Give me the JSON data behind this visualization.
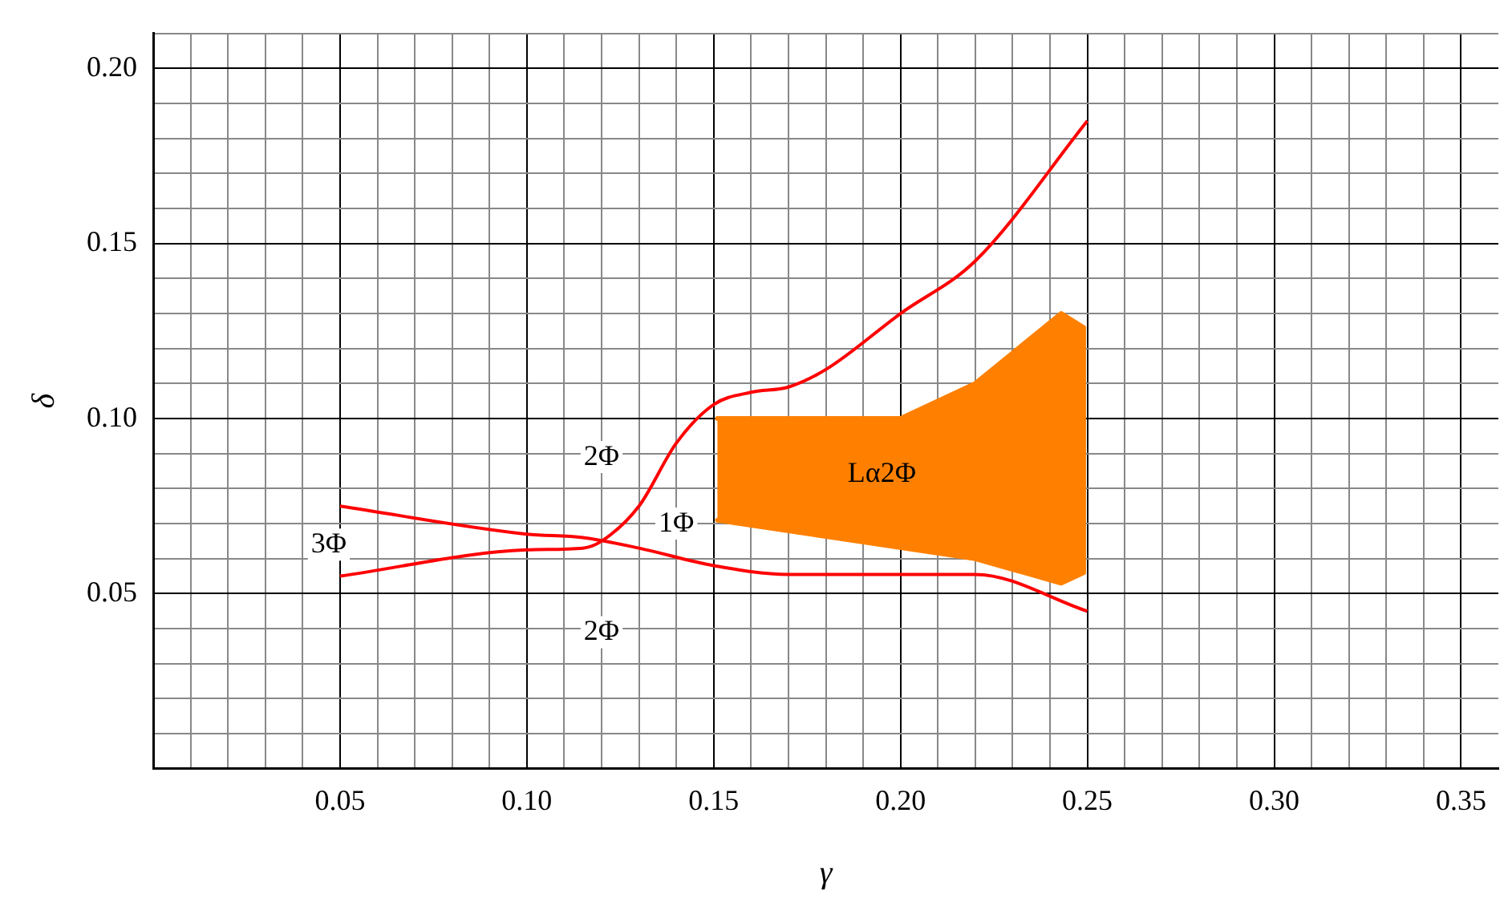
{
  "chart_data": {
    "type": "line",
    "xlabel": "γ",
    "ylabel": "δ",
    "xlim": [
      0,
      0.36
    ],
    "ylim": [
      0,
      0.21
    ],
    "xticks": [
      {
        "value": 0.01,
        "label": null
      },
      {
        "value": 0.02,
        "label": null
      },
      {
        "value": 0.03,
        "label": null
      },
      {
        "value": 0.04,
        "label": null
      },
      {
        "value": 0.05,
        "label": "0.05"
      },
      {
        "value": 0.06,
        "label": null
      },
      {
        "value": 0.07,
        "label": null
      },
      {
        "value": 0.08,
        "label": null
      },
      {
        "value": 0.09,
        "label": null
      },
      {
        "value": 0.1,
        "label": "0.10"
      },
      {
        "value": 0.11,
        "label": null
      },
      {
        "value": 0.12,
        "label": null
      },
      {
        "value": 0.13,
        "label": null
      },
      {
        "value": 0.14,
        "label": null
      },
      {
        "value": 0.15,
        "label": "0.15"
      },
      {
        "value": 0.16,
        "label": null
      },
      {
        "value": 0.17,
        "label": null
      },
      {
        "value": 0.18,
        "label": null
      },
      {
        "value": 0.19,
        "label": null
      },
      {
        "value": 0.2,
        "label": "0.20"
      },
      {
        "value": 0.21,
        "label": null
      },
      {
        "value": 0.22,
        "label": null
      },
      {
        "value": 0.23,
        "label": null
      },
      {
        "value": 0.24,
        "label": null
      },
      {
        "value": 0.25,
        "label": "0.25"
      },
      {
        "value": 0.26,
        "label": null
      },
      {
        "value": 0.27,
        "label": null
      },
      {
        "value": 0.28,
        "label": null
      },
      {
        "value": 0.29,
        "label": null
      },
      {
        "value": 0.3,
        "label": "0.30"
      },
      {
        "value": 0.31,
        "label": null
      },
      {
        "value": 0.32,
        "label": null
      },
      {
        "value": 0.33,
        "label": null
      },
      {
        "value": 0.34,
        "label": null
      },
      {
        "value": 0.35,
        "label": "0.35"
      }
    ],
    "yticks": [
      {
        "value": 0.01,
        "label": null
      },
      {
        "value": 0.02,
        "label": null
      },
      {
        "value": 0.03,
        "label": null
      },
      {
        "value": 0.04,
        "label": null
      },
      {
        "value": 0.05,
        "label": "0.05"
      },
      {
        "value": 0.06,
        "label": null
      },
      {
        "value": 0.07,
        "label": null
      },
      {
        "value": 0.08,
        "label": null
      },
      {
        "value": 0.09,
        "label": null
      },
      {
        "value": 0.1,
        "label": "0.10"
      },
      {
        "value": 0.11,
        "label": null
      },
      {
        "value": 0.12,
        "label": null
      },
      {
        "value": 0.13,
        "label": null
      },
      {
        "value": 0.14,
        "label": null
      },
      {
        "value": 0.15,
        "label": "0.15"
      },
      {
        "value": 0.16,
        "label": null
      },
      {
        "value": 0.17,
        "label": null
      },
      {
        "value": 0.18,
        "label": null
      },
      {
        "value": 0.19,
        "label": null
      },
      {
        "value": 0.2,
        "label": "0.20"
      },
      {
        "value": 0.21,
        "label": null
      }
    ],
    "grid": true,
    "legend": false,
    "marker": "none",
    "line_style": "solid",
    "series": [
      {
        "color": "#ff0000",
        "x": [
          0.05,
          0.1,
          0.115,
          0.13,
          0.15,
          0.17,
          0.2,
          0.22,
          0.25
        ],
        "values": [
          0.075,
          0.067,
          0.066,
          0.063,
          0.058,
          0.0555,
          0.0555,
          0.0555,
          0.045
        ]
      },
      {
        "color": "#ff0000",
        "x": [
          0.05,
          0.1,
          0.115,
          0.12,
          0.13,
          0.14,
          0.15,
          0.16,
          0.17,
          0.18,
          0.2,
          0.22,
          0.25
        ],
        "values": [
          0.055,
          0.0625,
          0.063,
          0.065,
          0.075,
          0.093,
          0.104,
          0.1075,
          0.109,
          0.114,
          0.13,
          0.145,
          0.185
        ]
      },
      {
        "type": "area",
        "color": "#ff8000",
        "x": [
          0.151,
          0.2,
          0.22,
          0.243,
          0.249,
          0.249,
          0.243,
          0.22,
          0.151
        ],
        "values": [
          0.1,
          0.1,
          0.11,
          0.13,
          0.126,
          0.056,
          0.053,
          0.06,
          0.071
        ]
      }
    ],
    "annotations": [
      "3Φ",
      "2Φ",
      "1Φ",
      "2Φ",
      "Lα2Φ"
    ]
  }
}
